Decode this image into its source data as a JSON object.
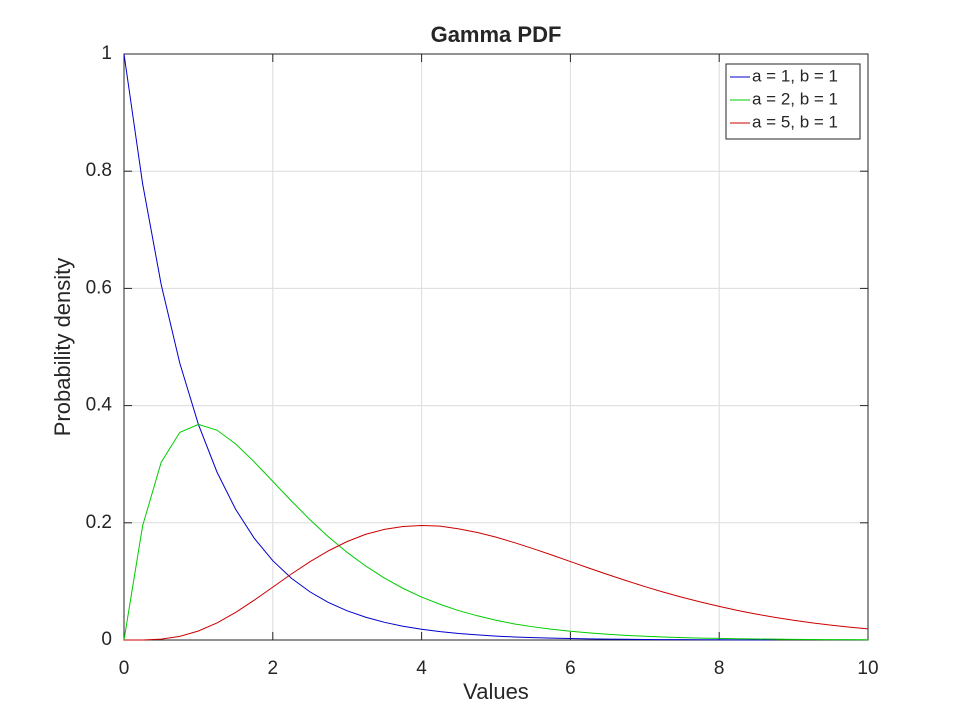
{
  "chart_data": {
    "type": "line",
    "title": "Gamma PDF",
    "xlabel": "Values",
    "ylabel": "Probability density",
    "x": [
      0,
      0.25,
      0.5,
      0.75,
      1,
      1.25,
      1.5,
      1.75,
      2,
      2.25,
      2.5,
      2.75,
      3,
      3.25,
      3.5,
      3.75,
      4,
      4.25,
      4.5,
      4.75,
      5,
      5.25,
      5.5,
      5.75,
      6,
      6.25,
      6.5,
      6.75,
      7,
      7.25,
      7.5,
      7.75,
      8,
      8.25,
      8.5,
      8.75,
      9,
      9.25,
      9.5,
      9.75,
      10
    ],
    "series": [
      {
        "name": "a = 1, b = 1",
        "color": "#0000cc",
        "values": [
          1,
          0.7788,
          0.6065,
          0.4724,
          0.3679,
          0.2865,
          0.2231,
          0.1738,
          0.1353,
          0.1054,
          0.0821,
          0.0639,
          0.0498,
          0.0388,
          0.0302,
          0.0235,
          0.0183,
          0.0143,
          0.0111,
          0.0087,
          0.0067,
          0.0052,
          0.0041,
          0.0032,
          0.0025,
          0.0019,
          0.0015,
          0.0012,
          0.0009,
          0.0007,
          0.00055,
          0.00043,
          0.00034,
          0.00026,
          0.0002,
          0.00016,
          null,
          null,
          null,
          null,
          null
        ]
      },
      {
        "name": "a = 2, b = 1",
        "color": "#00cc00",
        "values": [
          0,
          0.1947,
          0.3033,
          0.3543,
          0.3679,
          0.3581,
          0.3347,
          0.3041,
          0.2707,
          0.2372,
          0.2052,
          0.1758,
          0.1494,
          0.1261,
          0.1057,
          0.0881,
          0.0733,
          0.0608,
          0.05,
          0.0413,
          0.0337,
          0.0273,
          0.0225,
          0.0184,
          0.0149,
          0.0121,
          0.0098,
          0.0079,
          0.0064,
          0.0051,
          0.0041,
          0.0033,
          0.0027,
          0.0021,
          0.0017,
          0.0014,
          0.0011,
          0.00089,
          0.00071,
          0.00057,
          0.00045
        ]
      },
      {
        "name": "a = 5, b = 1",
        "color": "#cc0000",
        "values": [
          0,
          0.0001,
          0.00158,
          0.00623,
          0.01533,
          0.02914,
          0.04706,
          0.06792,
          0.0902,
          0.1126,
          0.1336,
          0.1523,
          0.1681,
          0.1804,
          0.1888,
          0.1936,
          0.1954,
          0.1944,
          0.1897,
          0.1835,
          0.1755,
          0.1661,
          0.1558,
          0.145,
          0.1339,
          0.1227,
          0.1118,
          0.1013,
          0.0912,
          0.0817,
          0.0729,
          0.0648,
          0.0573,
          0.0504,
          0.0442,
          0.0386,
          0.0337,
          0.0293,
          0.0254,
          0.022,
          0.0189
        ]
      }
    ],
    "xlim": [
      0,
      10
    ],
    "xticks": [
      0,
      2,
      4,
      6,
      8,
      10
    ],
    "ylim": [
      0,
      1
    ],
    "yticks": [
      0,
      0.2,
      0.4,
      0.6,
      0.8,
      1
    ],
    "grid": true,
    "legend": "top-right"
  }
}
